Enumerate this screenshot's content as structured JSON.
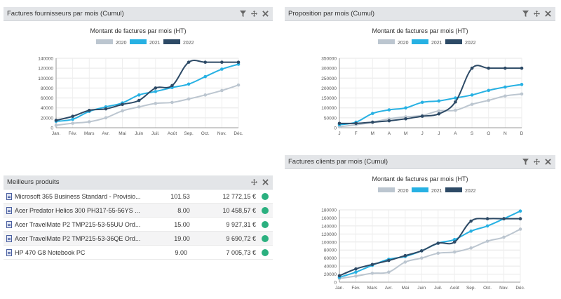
{
  "panels": {
    "fournisseurs": {
      "title": "Factures fournisseurs par mois (Cumul)"
    },
    "proposition": {
      "title": "Proposition par mois (Cumul)"
    },
    "produits": {
      "title": "Meilleurs produits"
    },
    "clients": {
      "title": "Factures clients par mois (Cumul)"
    }
  },
  "colors": {
    "s2020": "#bcc6d0",
    "s2021": "#27b1e3",
    "s2022": "#2d4a66",
    "status_ok": "#2bb07f"
  },
  "products": [
    {
      "name": "Microsoft 365 Business Standard - Provisio...",
      "qty": "101.53",
      "amount": "12 772,15 €"
    },
    {
      "name": "Acer Predator Helios 300 PH317-55-56YS ...",
      "qty": "8.00",
      "amount": "10 458,57 €"
    },
    {
      "name": "Acer TravelMate P2 TMP215-53-55UU Ord...",
      "qty": "15.00",
      "amount": "9 927,31 €"
    },
    {
      "name": "Acer TravelMate P2 TMP215-53-36QE Ord...",
      "qty": "19.00",
      "amount": "9 690,72 €"
    },
    {
      "name": "HP 470 G8 Notebook PC",
      "qty": "9.00",
      "amount": "7 005,73 €"
    }
  ],
  "chart_data": [
    {
      "id": "fournisseurs",
      "type": "line",
      "title": "Montant de factures par mois (HT)",
      "categories": [
        "Jan.",
        "Fév.",
        "Mars",
        "Avr.",
        "Mai",
        "Juin",
        "Juil.",
        "Août",
        "Sep.",
        "Oct.",
        "Nov.",
        "Déc."
      ],
      "ylim": [
        0,
        140000
      ],
      "yticks": [
        0,
        20000,
        40000,
        60000,
        80000,
        100000,
        120000,
        140000
      ],
      "legend": "top-center",
      "series": [
        {
          "name": "2020",
          "color": "#bcc6d0",
          "values": [
            5000,
            9000,
            12000,
            20000,
            34000,
            42000,
            49000,
            51000,
            58000,
            66000,
            75000,
            86000
          ]
        },
        {
          "name": "2021",
          "color": "#27b1e3",
          "values": [
            13000,
            17000,
            33000,
            42000,
            50000,
            66000,
            73000,
            81000,
            88000,
            103000,
            118000,
            128000
          ]
        },
        {
          "name": "2022",
          "color": "#2d4a66",
          "values": [
            15000,
            23000,
            35000,
            38000,
            47000,
            55000,
            80000,
            85000,
            132000,
            132000,
            132000,
            132000
          ]
        }
      ]
    },
    {
      "id": "proposition",
      "type": "line",
      "title": "Montant de factures par mois (HT)",
      "panel_title": "Proposition par mois (Cumul)",
      "categories": [
        "J",
        "F",
        "M",
        "A",
        "M",
        "J",
        "J",
        "A",
        "S",
        "O",
        "N",
        "D"
      ],
      "ylim": [
        0,
        350000
      ],
      "yticks": [
        0,
        50000,
        100000,
        150000,
        200000,
        250000,
        300000,
        350000
      ],
      "legend": "top-center",
      "series": [
        {
          "name": "2020",
          "color": "#bcc6d0",
          "values": [
            5000,
            15000,
            28000,
            45000,
            55000,
            62000,
            85000,
            88000,
            118000,
            138000,
            160000,
            170000
          ]
        },
        {
          "name": "2021",
          "color": "#27b1e3",
          "values": [
            15000,
            28000,
            72000,
            90000,
            100000,
            128000,
            135000,
            150000,
            165000,
            188000,
            205000,
            218000
          ]
        },
        {
          "name": "2022",
          "color": "#2d4a66",
          "values": [
            22000,
            22000,
            28000,
            35000,
            45000,
            58000,
            70000,
            130000,
            300000,
            300000,
            300000,
            300000
          ]
        }
      ]
    },
    {
      "id": "clients",
      "type": "line",
      "title": "Montant de factures par mois (HT)",
      "categories": [
        "Jan.",
        "Fév.",
        "Mars",
        "Avr.",
        "Mai",
        "Juin",
        "Juil.",
        "Août",
        "Sep.",
        "Oct.",
        "Nov.",
        "Déc."
      ],
      "ylim": [
        0,
        180000
      ],
      "yticks": [
        0,
        20000,
        40000,
        60000,
        80000,
        100000,
        120000,
        140000,
        160000,
        180000
      ],
      "legend": "top-center",
      "series": [
        {
          "name": "2020",
          "color": "#bcc6d0",
          "values": [
            9000,
            15000,
            22000,
            25000,
            50000,
            60000,
            72000,
            75000,
            85000,
            102000,
            112000,
            132000
          ]
        },
        {
          "name": "2021",
          "color": "#27b1e3",
          "values": [
            12000,
            25000,
            42000,
            57000,
            64000,
            78000,
            97000,
            106000,
            127000,
            140000,
            158000,
            177000
          ]
        },
        {
          "name": "2022",
          "color": "#2d4a66",
          "values": [
            16000,
            33000,
            44000,
            54000,
            66000,
            78000,
            97000,
            100000,
            152000,
            158000,
            158000,
            158000
          ]
        }
      ]
    }
  ]
}
